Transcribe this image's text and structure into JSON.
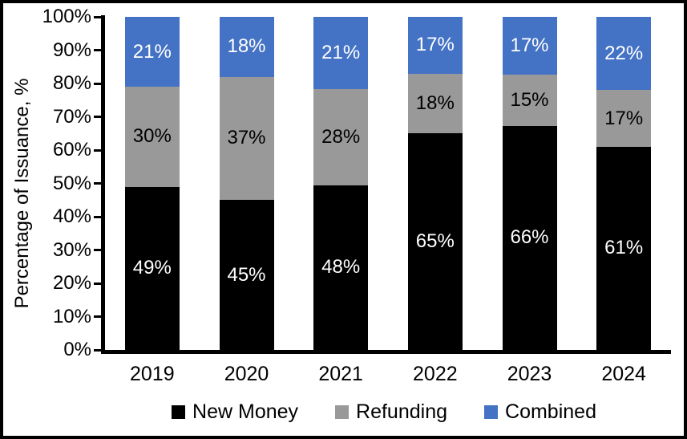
{
  "chart_data": {
    "type": "bar",
    "stacked": true,
    "orientation": "vertical",
    "categories": [
      "2019",
      "2020",
      "2021",
      "2022",
      "2023",
      "2024"
    ],
    "series": [
      {
        "name": "New Money",
        "color": "#000000",
        "label_color": "#FFFFFF",
        "values": [
          49,
          45,
          48,
          65,
          66,
          61
        ]
      },
      {
        "name": "Refunding",
        "color": "#999999",
        "label_color": "#000000",
        "values": [
          30,
          37,
          28,
          18,
          15,
          17
        ]
      },
      {
        "name": "Combined",
        "color": "#4472C4",
        "label_color": "#FFFFFF",
        "values": [
          21,
          18,
          21,
          17,
          17,
          22
        ]
      }
    ],
    "ylabel": "Percentage of Issuance, %",
    "xlabel": "",
    "title": "",
    "ylim": [
      0,
      100
    ],
    "ytick_step": 10,
    "ytick_labels": [
      "0%",
      "10%",
      "20%",
      "30%",
      "40%",
      "50%",
      "60%",
      "70%",
      "80%",
      "90%",
      "100%"
    ],
    "value_suffix": "%",
    "grid": false,
    "legend_position": "bottom"
  }
}
